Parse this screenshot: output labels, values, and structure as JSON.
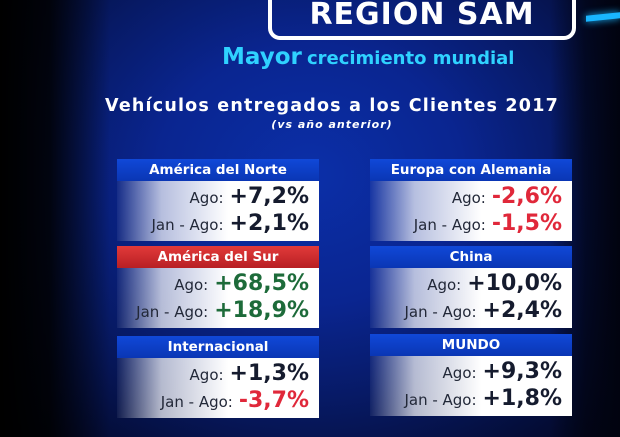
{
  "title": "REGIÓN SAM",
  "subtitle": {
    "strong": "Mayor",
    "rest": "crecimiento mundial"
  },
  "heading": "Vehículos entregados a los Clientes 2017",
  "subheading": "(vs año anterior)",
  "colors": {
    "accent": "#2fd2ff",
    "header_blue": "#0a36b4",
    "header_red": "#c62a2e",
    "negative": "#e0283a",
    "highlight_green": "#1d6b3a"
  },
  "cards": [
    {
      "name": "América del Norte",
      "rows": [
        {
          "label": "Ago:",
          "value": "+7,2%"
        },
        {
          "label": "Jan - Ago:",
          "value": "+2,1%"
        }
      ]
    },
    {
      "name": "Europa con Alemania",
      "rows": [
        {
          "label": "Ago:",
          "value": "-2,6%"
        },
        {
          "label": "Jan - Ago:",
          "value": "-1,5%"
        }
      ]
    },
    {
      "name": "América del Sur",
      "rows": [
        {
          "label": "Ago:",
          "value": "+68,5%"
        },
        {
          "label": "Jan - Ago:",
          "value": "+18,9%"
        }
      ]
    },
    {
      "name": "China",
      "rows": [
        {
          "label": "Ago:",
          "value": "+10,0%"
        },
        {
          "label": "Jan - Ago:",
          "value": "+2,4%"
        }
      ]
    },
    {
      "name": "Internacional",
      "rows": [
        {
          "label": "Ago:",
          "value": "+1,3%"
        },
        {
          "label": "Jan - Ago:",
          "value": "-3,7%"
        }
      ]
    },
    {
      "name": "MUNDO",
      "rows": [
        {
          "label": "Ago:",
          "value": "+9,3%"
        },
        {
          "label": "Jan - Ago:",
          "value": "+1,8%"
        }
      ]
    }
  ]
}
